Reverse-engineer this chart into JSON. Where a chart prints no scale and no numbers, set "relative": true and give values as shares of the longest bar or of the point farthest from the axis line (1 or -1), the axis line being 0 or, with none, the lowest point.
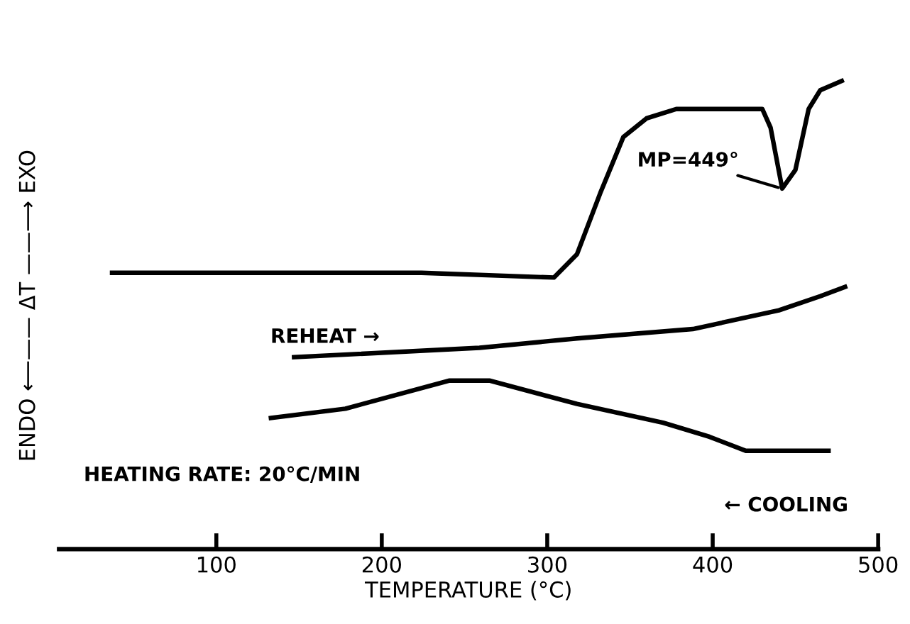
{
  "chart_data": {
    "type": "line",
    "relative": true,
    "xlabel": "TEMPERATURE (°C)",
    "ylabel": "ENDO ⟵—— ΔT ——⟶ EXO",
    "xlim": [
      5,
      500
    ],
    "xticks": [
      100,
      200,
      300,
      400,
      500
    ],
    "grid": false,
    "legend": false,
    "marker": "none",
    "line_style": "solid",
    "tick_labels": "x",
    "series": [
      {
        "color": "#000000",
        "x": [
          37,
          139,
          224,
          304,
          318,
          332,
          346,
          360,
          378,
          430,
          435,
          442,
          450,
          458,
          465,
          478
        ],
        "values": [
          0.59,
          0.59,
          0.59,
          0.58,
          0.63,
          0.76,
          0.88,
          0.92,
          0.94,
          0.94,
          0.9,
          0.77,
          0.81,
          0.94,
          0.98,
          1.0
        ]
      },
      {
        "name": "REHEAT →",
        "color": "#000000",
        "x": [
          147,
          259,
          318,
          388,
          440,
          465,
          480
        ],
        "values": [
          0.41,
          0.43,
          0.45,
          0.47,
          0.51,
          0.54,
          0.56
        ]
      },
      {
        "name": "← COOLING",
        "color": "#000000",
        "x": [
          133,
          178,
          241,
          265,
          318,
          370,
          398,
          420,
          470
        ],
        "values": [
          0.28,
          0.3,
          0.36,
          0.36,
          0.31,
          0.27,
          0.24,
          0.21,
          0.21
        ]
      }
    ],
    "annotations": [
      {
        "text": "MP=449°",
        "x": 442,
        "y": 0.77
      },
      "HEATING RATE: 20°C/MIN"
    ]
  }
}
